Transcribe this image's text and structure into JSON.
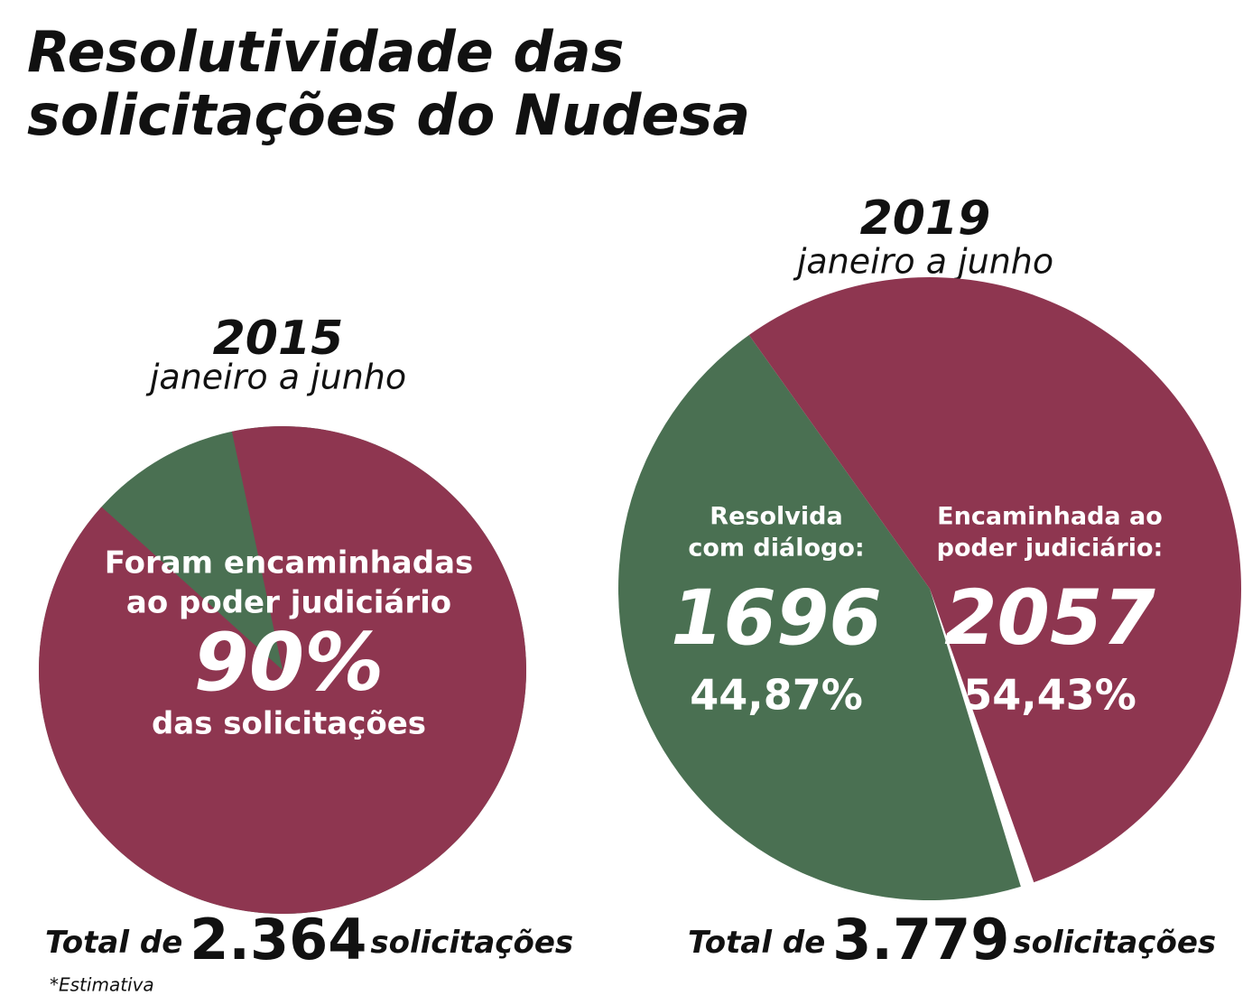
{
  "title": [
    "Resolutividade das",
    "solicitações do Nudesa"
  ],
  "chart_data": [
    {
      "type": "pie",
      "title": "2015",
      "subtitle": "janeiro a junho",
      "annotation": [
        "Foram encaminhadas",
        "ao poder judiciário"
      ],
      "values": [
        90
      ],
      "value_labels": [
        "90%"
      ],
      "annotation_suffix": "das solicitações",
      "colors": [
        "#8e3650"
      ],
      "rest_color": "#4a7052",
      "total_prefix": "Total de",
      "total": 2364,
      "total_label": "2.364",
      "total_suffix": "solicitações"
    },
    {
      "type": "pie",
      "title": "2019",
      "subtitle": "janeiro a junho",
      "categories": [
        [
          "Resolvida",
          "com diálogo:"
        ],
        [
          "Encaminhada ao",
          "poder judiciário:"
        ]
      ],
      "counts": [
        1696,
        2057
      ],
      "values": [
        44.87,
        54.43
      ],
      "value_labels": [
        "44,87%",
        "54,43%"
      ],
      "colors": [
        "#4a7052",
        "#8e3650"
      ],
      "total_prefix": "Total de",
      "total": 3779,
      "total_label": "3.779",
      "total_suffix": "solicitações"
    }
  ],
  "footnote": "*Estimativa"
}
